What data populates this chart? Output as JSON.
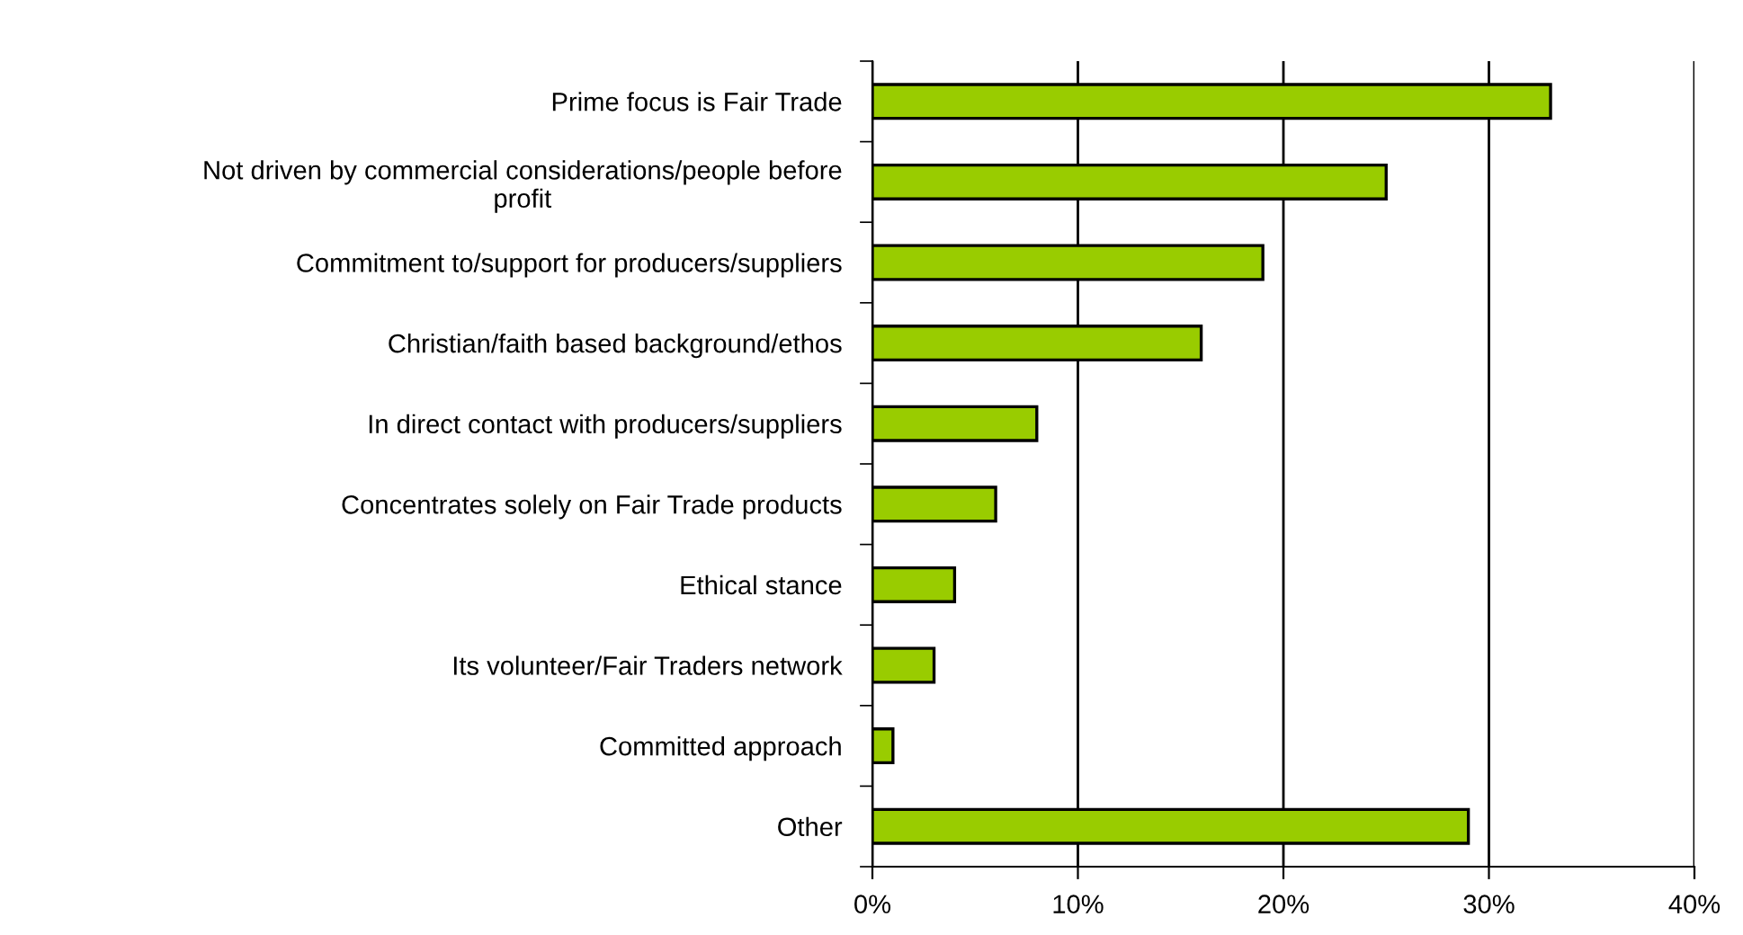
{
  "chart_data": {
    "type": "bar",
    "orientation": "horizontal",
    "categories": [
      "Prime focus is Fair Trade",
      "Not driven by commercial considerations/people before\nprofit",
      "Commitment to/support for producers/suppliers",
      "Christian/faith based background/ethos",
      "In direct contact with producers/suppliers",
      "Concentrates solely on Fair Trade products",
      "Ethical stance",
      "Its volunteer/Fair Traders network",
      "Committed approach",
      "Other"
    ],
    "values": [
      33,
      25,
      19,
      16,
      8,
      6,
      4,
      3,
      1,
      29
    ],
    "color": "#99cc00",
    "xlim": [
      0,
      40
    ],
    "xticks": [
      {
        "value": 0,
        "label": "0%"
      },
      {
        "value": 10,
        "label": "10%"
      },
      {
        "value": 20,
        "label": "20%"
      },
      {
        "value": 30,
        "label": "30%"
      },
      {
        "value": 40,
        "label": "40%"
      }
    ],
    "grid": "x",
    "legend": false
  }
}
